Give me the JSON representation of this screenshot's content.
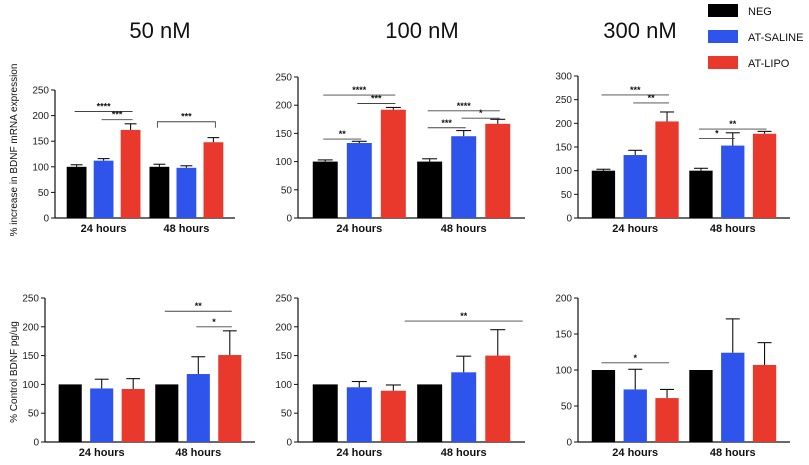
{
  "legend": [
    {
      "label": "NEG",
      "color": "#000000"
    },
    {
      "label": "AT-SALINE",
      "color": "#2f54eb"
    },
    {
      "label": "AT-LIPO",
      "color": "#e8392c"
    }
  ],
  "column_titles": [
    "50 nM",
    "100 nM",
    "300 nM"
  ],
  "row_ylabels": [
    "% increase in BDNF mRNA expression",
    "% Control BDNF  pg/ug"
  ],
  "chart_data": [
    {
      "type": "bar",
      "row": 0,
      "col": 0,
      "categories": [
        "24 hours",
        "48 hours"
      ],
      "series": [
        {
          "name": "NEG",
          "values": [
            100,
            100
          ],
          "errors": [
            4,
            5
          ]
        },
        {
          "name": "AT-SALINE",
          "values": [
            112,
            98
          ],
          "errors": [
            4,
            4
          ]
        },
        {
          "name": "AT-LIPO",
          "values": [
            172,
            148
          ],
          "errors": [
            12,
            9
          ]
        }
      ],
      "ylim": [
        0,
        250
      ],
      "yticks": [
        0,
        50,
        100,
        150,
        200,
        250
      ],
      "significance": [
        {
          "group": 0,
          "from": 0,
          "to": 2,
          "y": 208,
          "label": "****"
        },
        {
          "group": 0,
          "from": 1,
          "to": 2,
          "y": 192,
          "label": "***"
        },
        {
          "group": 1,
          "from": 0,
          "to": 2,
          "y": 188,
          "label": "***",
          "bracket": true
        }
      ]
    },
    {
      "type": "bar",
      "row": 0,
      "col": 1,
      "categories": [
        "24 hours",
        "48 hours"
      ],
      "series": [
        {
          "name": "NEG",
          "values": [
            100,
            100
          ],
          "errors": [
            3,
            5
          ]
        },
        {
          "name": "AT-SALINE",
          "values": [
            133,
            145
          ],
          "errors": [
            3,
            10
          ]
        },
        {
          "name": "AT-LIPO",
          "values": [
            192,
            167
          ],
          "errors": [
            4,
            8
          ]
        }
      ],
      "ylim": [
        0,
        250
      ],
      "yticks": [
        0,
        50,
        100,
        150,
        200,
        250
      ],
      "significance": [
        {
          "group": 0,
          "from": 0,
          "to": 2,
          "y": 218,
          "label": "****"
        },
        {
          "group": 0,
          "from": 1,
          "to": 2,
          "y": 203,
          "label": "***"
        },
        {
          "group": 0,
          "from": 0,
          "to": 1,
          "y": 140,
          "label": "**"
        },
        {
          "group": 1,
          "from": 0,
          "to": 2,
          "y": 190,
          "label": "****"
        },
        {
          "group": 1,
          "from": 1,
          "to": 2,
          "y": 177,
          "label": "*"
        },
        {
          "group": 1,
          "from": 0,
          "to": 1,
          "y": 160,
          "label": "***"
        }
      ]
    },
    {
      "type": "bar",
      "row": 0,
      "col": 2,
      "categories": [
        "24 hours",
        "48 hours"
      ],
      "series": [
        {
          "name": "NEG",
          "values": [
            100,
            100
          ],
          "errors": [
            3,
            5
          ]
        },
        {
          "name": "AT-SALINE",
          "values": [
            133,
            153
          ],
          "errors": [
            10,
            27
          ]
        },
        {
          "name": "AT-LIPO",
          "values": [
            204,
            178
          ],
          "errors": [
            20,
            5
          ]
        }
      ],
      "ylim": [
        0,
        300
      ],
      "yticks": [
        0,
        50,
        100,
        150,
        200,
        250,
        300
      ],
      "significance": [
        {
          "group": 0,
          "from": 0,
          "to": 2,
          "y": 260,
          "label": "***"
        },
        {
          "group": 0,
          "from": 1,
          "to": 2,
          "y": 243,
          "label": "**"
        },
        {
          "group": 1,
          "from": 0,
          "to": 2,
          "y": 188,
          "label": "**"
        },
        {
          "group": 1,
          "from": 0,
          "to": 1,
          "y": 168,
          "label": "*"
        }
      ]
    },
    {
      "type": "bar",
      "row": 1,
      "col": 0,
      "categories": [
        "24 hours",
        "48 hours"
      ],
      "series": [
        {
          "name": "NEG",
          "values": [
            100,
            100
          ],
          "errors": [
            0,
            0
          ]
        },
        {
          "name": "AT-SALINE",
          "values": [
            93,
            118
          ],
          "errors": [
            16,
            30
          ]
        },
        {
          "name": "AT-LIPO",
          "values": [
            92,
            151
          ],
          "errors": [
            18,
            42
          ]
        }
      ],
      "ylim": [
        0,
        250
      ],
      "yticks": [
        0,
        50,
        100,
        150,
        200,
        250
      ],
      "significance": [
        {
          "group": 1,
          "from": 0,
          "to": 2,
          "y": 227,
          "label": "**"
        },
        {
          "group": 1,
          "from": 1,
          "to": 2,
          "y": 200,
          "label": "*"
        }
      ]
    },
    {
      "type": "bar",
      "row": 1,
      "col": 1,
      "categories": [
        "24 hours",
        "48 hours"
      ],
      "series": [
        {
          "name": "NEG",
          "values": [
            100,
            100
          ],
          "errors": [
            0,
            0
          ]
        },
        {
          "name": "AT-SALINE",
          "values": [
            95,
            121
          ],
          "errors": [
            10,
            28
          ]
        },
        {
          "name": "AT-LIPO",
          "values": [
            89,
            150
          ],
          "errors": [
            10,
            45
          ]
        }
      ],
      "ylim": [
        0,
        250
      ],
      "yticks": [
        0,
        50,
        100,
        150,
        200,
        250
      ],
      "significance": [
        {
          "group": 1,
          "from": 0,
          "to": 2,
          "y": 210,
          "label": "**",
          "spread": true
        }
      ]
    },
    {
      "type": "bar",
      "row": 1,
      "col": 2,
      "categories": [
        "24 hours",
        "48 hours"
      ],
      "series": [
        {
          "name": "NEG",
          "values": [
            100,
            100
          ],
          "errors": [
            0,
            0
          ]
        },
        {
          "name": "AT-SALINE",
          "values": [
            73,
            124
          ],
          "errors": [
            28,
            47
          ]
        },
        {
          "name": "AT-LIPO",
          "values": [
            61,
            107
          ],
          "errors": [
            12,
            31
          ]
        }
      ],
      "ylim": [
        0,
        200
      ],
      "yticks": [
        0,
        50,
        100,
        150,
        200
      ],
      "significance": [
        {
          "group": 0,
          "from": 0,
          "to": 2,
          "y": 110,
          "label": "*"
        }
      ]
    }
  ]
}
